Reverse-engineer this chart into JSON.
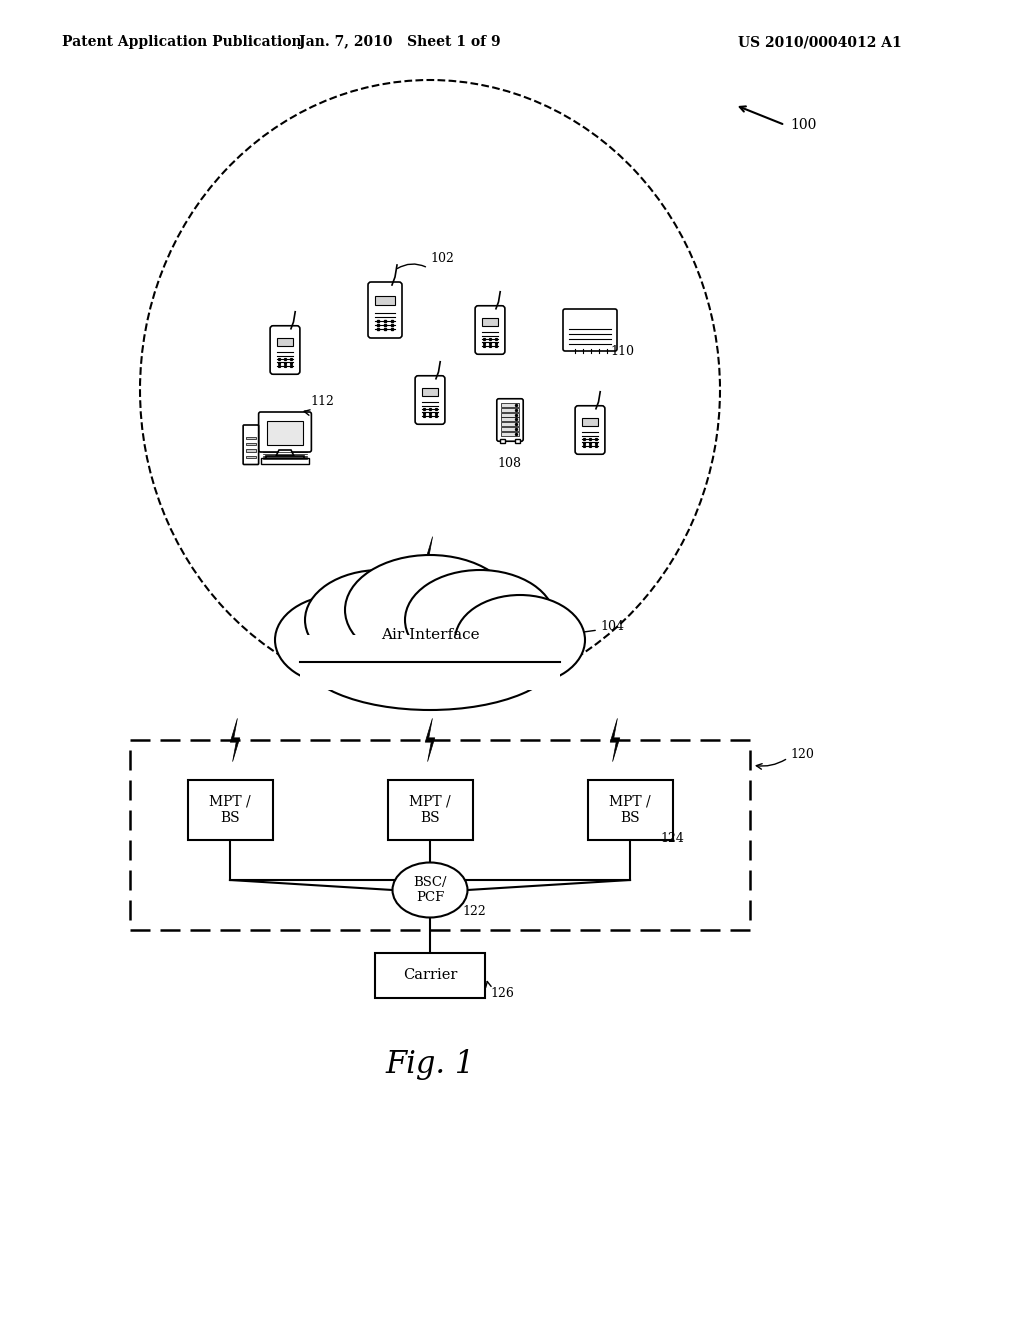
{
  "title_left": "Patent Application Publication",
  "title_mid": "Jan. 7, 2010   Sheet 1 of 9",
  "title_right": "US 2010/0004012 A1",
  "fig_label": "Fig. 1",
  "bg_color": "#ffffff",
  "label_100": "100",
  "label_102": "102",
  "label_104": "104",
  "label_108": "108",
  "label_110": "110",
  "label_112": "112",
  "label_120": "120",
  "label_122": "122",
  "label_124": "124",
  "label_126": "126",
  "text_air": "Air Interface",
  "text_mpt_bs": "MPT /\nBS",
  "text_bsc_pcf": "BSC/\nPCF",
  "text_carrier": "Carrier"
}
